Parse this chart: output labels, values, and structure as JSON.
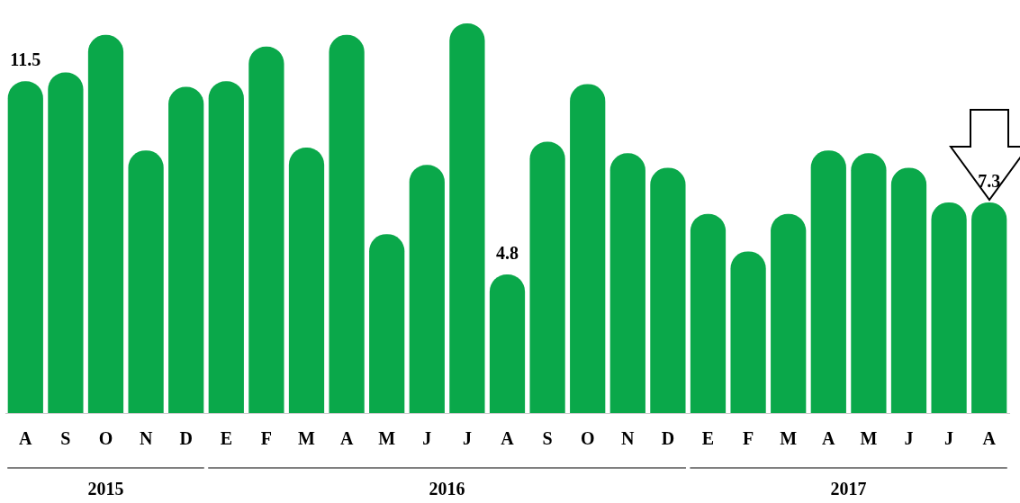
{
  "chart_data": {
    "type": "bar",
    "categories": [
      "A",
      "S",
      "O",
      "N",
      "D",
      "E",
      "F",
      "M",
      "A",
      "M",
      "J",
      "J",
      "A",
      "S",
      "O",
      "N",
      "D",
      "E",
      "F",
      "M",
      "A",
      "M",
      "J",
      "J",
      "A"
    ],
    "values": [
      11.5,
      11.8,
      13.1,
      9.1,
      11.3,
      11.5,
      12.7,
      9.2,
      13.1,
      6.2,
      8.6,
      13.5,
      4.8,
      9.4,
      11.4,
      9.0,
      8.5,
      6.9,
      5.6,
      6.9,
      9.1,
      9.0,
      8.5,
      7.3,
      7.3
    ],
    "value_labels": [
      "11.5",
      null,
      null,
      null,
      null,
      null,
      null,
      null,
      null,
      null,
      null,
      null,
      "4.8",
      null,
      null,
      null,
      null,
      null,
      null,
      null,
      null,
      null,
      null,
      null,
      "7.3"
    ],
    "color": "#0aa84a",
    "annotations": [
      "2015",
      "2016",
      "2017"
    ],
    "legend": false
  }
}
